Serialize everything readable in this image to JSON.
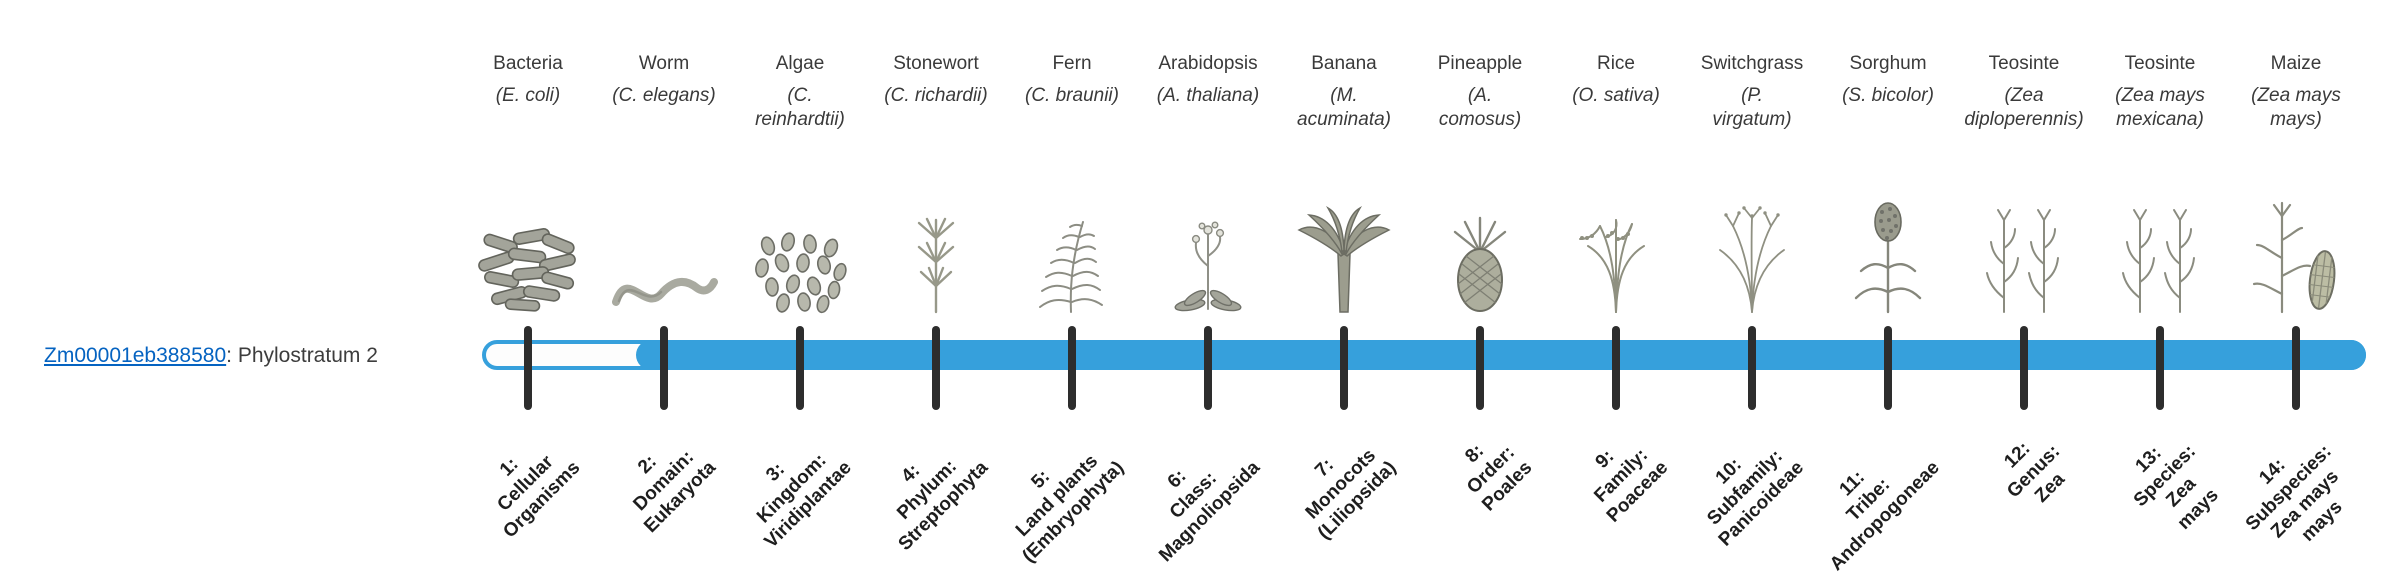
{
  "colors": {
    "bar_blue": "#36A0DC",
    "link_blue": "#0563C1",
    "tick_dark": "#2d2d2d"
  },
  "gene": {
    "id": "Zm00001eb388580",
    "suffix": ": Phylostratum 2",
    "phylostratum": 2
  },
  "organisms": [
    {
      "name": "Bacteria",
      "sci_lines": [
        "(E. coli)"
      ],
      "icon": "bacteria-icon"
    },
    {
      "name": "Worm",
      "sci_lines": [
        "(C. elegans)"
      ],
      "icon": "worm-icon"
    },
    {
      "name": "Algae",
      "sci_lines": [
        "(C.",
        "reinhardtii)"
      ],
      "icon": "algae-icon"
    },
    {
      "name": "Stonewort",
      "sci_lines": [
        "(C. richardii)"
      ],
      "icon": "stonewort-icon"
    },
    {
      "name": "Fern",
      "sci_lines": [
        "(C. braunii)"
      ],
      "icon": "fern-icon"
    },
    {
      "name": "Arabidopsis",
      "sci_lines": [
        "(A. thaliana)"
      ],
      "icon": "arabidopsis-icon"
    },
    {
      "name": "Banana",
      "sci_lines": [
        "(M.",
        "acuminata)"
      ],
      "icon": "banana-icon"
    },
    {
      "name": "Pineapple",
      "sci_lines": [
        "(A.",
        "comosus)"
      ],
      "icon": "pineapple-icon"
    },
    {
      "name": "Rice",
      "sci_lines": [
        "(O. sativa)"
      ],
      "icon": "rice-icon"
    },
    {
      "name": "Switchgrass",
      "sci_lines": [
        "(P.",
        "virgatum)"
      ],
      "icon": "switchgrass-icon"
    },
    {
      "name": "Sorghum",
      "sci_lines": [
        "(S. bicolor)"
      ],
      "icon": "sorghum-icon"
    },
    {
      "name": "Teosinte",
      "sci_lines": [
        "(Zea",
        "diploperennis)"
      ],
      "icon": "teosinte-icon"
    },
    {
      "name": "Teosinte",
      "sci_lines": [
        "(Zea mays",
        "mexicana)"
      ],
      "icon": "teosinte-icon"
    },
    {
      "name": "Maize",
      "sci_lines": [
        "(Zea mays",
        "mays)"
      ],
      "icon": "maize-icon"
    }
  ],
  "phylostrata": [
    {
      "lines": [
        "1:",
        "Cellular",
        "Organisms"
      ]
    },
    {
      "lines": [
        "2:",
        "Domain:",
        "Eukaryota"
      ]
    },
    {
      "lines": [
        "3:",
        "Kingdom:",
        "Viridiplantae"
      ]
    },
    {
      "lines": [
        "4:",
        "Phylum:",
        "Streptophyta"
      ]
    },
    {
      "lines": [
        "5:",
        "Land plants",
        "(Embryophyta)"
      ]
    },
    {
      "lines": [
        "6:",
        "Class:",
        "Magnoliopsida"
      ]
    },
    {
      "lines": [
        "7:",
        "Monocots",
        "(Liliopsida)"
      ]
    },
    {
      "lines": [
        "8:",
        "Order:",
        "Poales"
      ]
    },
    {
      "lines": [
        "9:",
        "Family:",
        "Poaceae"
      ]
    },
    {
      "lines": [
        "10:",
        "Subfamily:",
        "Panicoideae"
      ]
    },
    {
      "lines": [
        "11:",
        "Tribe:",
        "Andropogoneae"
      ]
    },
    {
      "lines": [
        "12:",
        "Genus:",
        "Zea"
      ]
    },
    {
      "lines": [
        "13:",
        "Species:",
        "Zea",
        "mays"
      ]
    },
    {
      "lines": [
        "14:",
        "Subspecies:",
        "Zea mays",
        "mays"
      ]
    }
  ]
}
